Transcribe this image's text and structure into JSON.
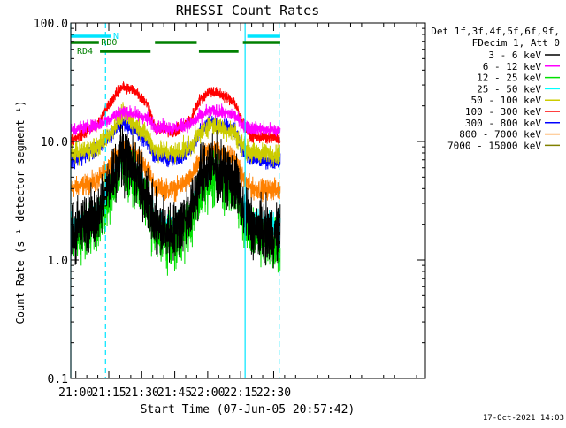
{
  "chart_data": {
    "type": "line",
    "title": "RHESSI Count Rates",
    "xlabel": "Start Time (07-Jun-05 20:57:42)",
    "ylabel": "Count Rate (s⁻¹ detector segment⁻¹)",
    "y_scale": "log",
    "ylim": [
      0.1,
      100.0
    ],
    "xlim": [
      "20:57:42",
      "23:39:00"
    ],
    "x_ticks": [
      "21:00",
      "21:15",
      "21:30",
      "21:45",
      "22:00",
      "22:15",
      "22:30"
    ],
    "y_ticks": [
      "0.1",
      "1.0",
      "10.0",
      "100.0"
    ],
    "grid": false,
    "legend_placement": "top-right outside",
    "legend_header": [
      "Det 1f,3f,4f,5f,6f,9f,",
      "FDecim 1, Att 0"
    ],
    "timestamp": "17-Oct-2021 14:03",
    "annotations": {
      "N": "N",
      "RD0": "RD0",
      "RD4": "RD4"
    },
    "flag_bars": {
      "N": {
        "color": "#00e5ff",
        "segments": [
          [
            "20:57:42",
            "21:16:00"
          ],
          [
            "22:18:00",
            "22:33:00"
          ]
        ]
      },
      "RD0": {
        "color": "#008000",
        "segments": [
          [
            "20:57:42",
            "21:10:30"
          ],
          [
            "21:36:00",
            "21:55:00"
          ],
          [
            "22:16:00",
            "22:33:00"
          ]
        ]
      },
      "RD4": {
        "color": "#008000",
        "segments": [
          [
            "21:11:00",
            "21:34:00"
          ],
          [
            "21:56:00",
            "22:14:00"
          ]
        ]
      }
    },
    "vertical_lines": [
      {
        "time": "20:57:42",
        "style": "solid",
        "color": "#00e5ff"
      },
      {
        "time": "21:13:30",
        "style": "dashed",
        "color": "#00e5ff"
      },
      {
        "time": "22:17:00",
        "style": "solid",
        "color": "#00e5ff"
      },
      {
        "time": "22:32:30",
        "style": "dashed",
        "color": "#00e5ff"
      }
    ],
    "series_key_times": [
      "20:57:42",
      "21:10:00",
      "21:16:00",
      "21:21:00",
      "21:27:00",
      "21:33:00",
      "21:36:00",
      "21:45:00",
      "21:52:00",
      "21:56:00",
      "22:01:00",
      "22:06:00",
      "22:12:00",
      "22:16:00",
      "22:20:00",
      "22:33:00"
    ],
    "series": [
      {
        "name": "3 - 6 keV",
        "color": "#000000",
        "noise": 0.18,
        "values": [
          1.7,
          2.4,
          5.0,
          8.0,
          5.5,
          3.2,
          1.9,
          1.7,
          2.6,
          4.6,
          6.5,
          5.5,
          4.8,
          2.8,
          1.9,
          1.6
        ]
      },
      {
        "name": "6 - 12 keV",
        "color": "#ff00ff",
        "noise": 0.04,
        "values": [
          12.5,
          13.8,
          15.8,
          18.0,
          17.0,
          15.5,
          13.4,
          13.0,
          14.0,
          16.0,
          18.2,
          17.5,
          16.8,
          13.8,
          13.0,
          12.2
        ]
      },
      {
        "name": "12 - 25 keV",
        "color": "#00e000",
        "noise": 0.15,
        "values": [
          1.5,
          2.0,
          3.8,
          6.8,
          4.8,
          2.7,
          1.6,
          1.4,
          2.0,
          3.4,
          4.8,
          4.5,
          4.0,
          2.3,
          1.6,
          1.4
        ]
      },
      {
        "name": "25 - 50 keV",
        "color": "#00ffff",
        "noise": 0.07,
        "values": [
          2.0,
          2.4,
          4.2,
          7.0,
          5.4,
          3.4,
          2.1,
          1.9,
          2.4,
          4.3,
          5.7,
          5.4,
          4.8,
          2.8,
          2.1,
          2.0
        ]
      },
      {
        "name": "50 - 100 keV",
        "color": "#cccc00",
        "noise": 0.06,
        "values": [
          7.8,
          9.0,
          12.0,
          17.0,
          14.0,
          11.0,
          8.5,
          8.0,
          9.0,
          11.5,
          14.0,
          13.0,
          12.0,
          9.0,
          8.0,
          7.8
        ]
      },
      {
        "name": "100 - 300 keV",
        "color": "#ff0000",
        "noise": 0.035,
        "values": [
          10.0,
          14.0,
          22.0,
          29.0,
          27.0,
          20.0,
          13.0,
          12.0,
          15.0,
          22.0,
          27.0,
          25.0,
          22.0,
          14.0,
          11.0,
          10.5
        ]
      },
      {
        "name": "300 - 800 keV",
        "color": "#0000ff",
        "noise": 0.045,
        "values": [
          6.8,
          8.5,
          11.5,
          14.5,
          12.5,
          9.5,
          7.5,
          7.0,
          8.5,
          11.5,
          15.0,
          13.5,
          12.5,
          8.5,
          7.0,
          6.8
        ]
      },
      {
        "name": "800 - 7000 keV",
        "color": "#ff8000",
        "noise": 0.06,
        "values": [
          4.0,
          4.6,
          6.5,
          9.0,
          7.8,
          5.8,
          4.1,
          3.9,
          4.8,
          6.6,
          8.8,
          8.0,
          7.3,
          4.9,
          4.0,
          3.9
        ]
      },
      {
        "name": "7000 - 15000 keV",
        "color": "#808000",
        "noise": 0.0,
        "values": []
      }
    ]
  }
}
